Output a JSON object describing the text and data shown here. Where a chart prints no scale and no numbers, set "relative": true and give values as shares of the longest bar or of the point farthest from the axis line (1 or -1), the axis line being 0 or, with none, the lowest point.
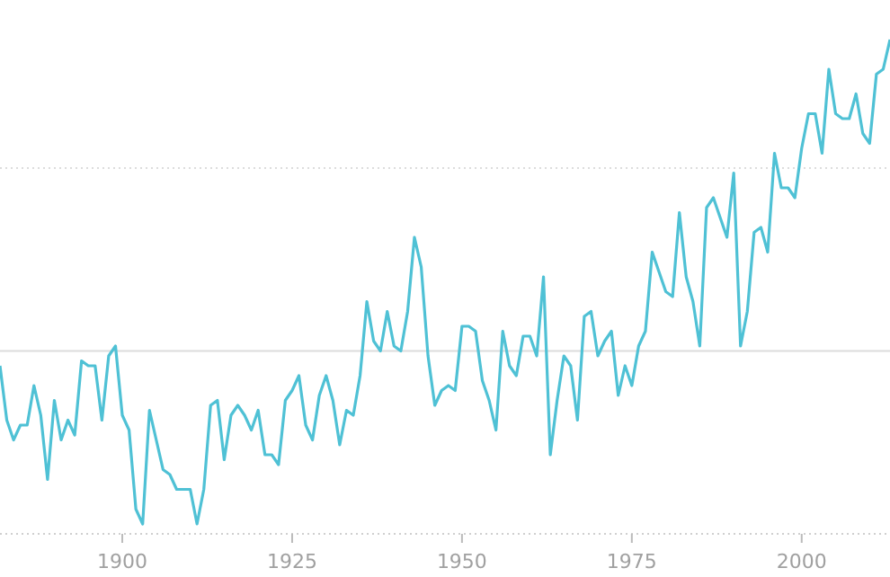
{
  "chart_data": {
    "type": "line",
    "relative": true,
    "x": [
      1882,
      1883,
      1884,
      1885,
      1886,
      1887,
      1888,
      1889,
      1890,
      1891,
      1892,
      1893,
      1894,
      1895,
      1896,
      1897,
      1898,
      1899,
      1900,
      1901,
      1902,
      1903,
      1904,
      1905,
      1906,
      1907,
      1908,
      1909,
      1910,
      1911,
      1912,
      1913,
      1914,
      1915,
      1916,
      1917,
      1918,
      1919,
      1920,
      1921,
      1922,
      1923,
      1924,
      1925,
      1926,
      1927,
      1928,
      1929,
      1930,
      1931,
      1932,
      1933,
      1934,
      1935,
      1936,
      1937,
      1938,
      1939,
      1940,
      1941,
      1942,
      1943,
      1944,
      1945,
      1946,
      1947,
      1948,
      1949,
      1950,
      1951,
      1952,
      1953,
      1954,
      1955,
      1956,
      1957,
      1958,
      1959,
      1960,
      1961,
      1962,
      1963,
      1964,
      1965,
      1966,
      1967,
      1968,
      1969,
      1970,
      1971,
      1972,
      1973,
      1974,
      1975,
      1976,
      1977,
      1978,
      1979,
      1980,
      1981,
      1982,
      1983,
      1984,
      1985,
      1986,
      1987,
      1988,
      1989,
      1990,
      1991,
      1992,
      1993,
      1994,
      1995,
      1996,
      1997,
      1998,
      1999,
      2000,
      2001,
      2002,
      2003,
      2004,
      2005,
      2006,
      2007,
      2008,
      2009,
      2010,
      2011,
      2012,
      2013
    ],
    "xlim": [
      1882,
      2013
    ],
    "xticks": [
      1900,
      1925,
      1950,
      1975,
      2000
    ],
    "tick_labels": "x",
    "ref_lines": [
      {
        "axis": "y",
        "value": 0.37,
        "color": "#dcdcdc",
        "line_style": "solid"
      },
      {
        "axis": "y",
        "value": 0.74,
        "color": "#dcdcdc",
        "line_style": "dotted"
      }
    ],
    "series": [
      {
        "color": "#4fc1d5",
        "values": [
          0.34,
          0.23,
          0.19,
          0.22,
          0.22,
          0.3,
          0.24,
          0.11,
          0.27,
          0.19,
          0.23,
          0.2,
          0.35,
          0.34,
          0.34,
          0.23,
          0.36,
          0.38,
          0.24,
          0.21,
          0.05,
          0.02,
          0.25,
          0.19,
          0.13,
          0.12,
          0.09,
          0.09,
          0.09,
          0.02,
          0.09,
          0.26,
          0.27,
          0.15,
          0.24,
          0.26,
          0.24,
          0.21,
          0.25,
          0.16,
          0.16,
          0.14,
          0.27,
          0.29,
          0.32,
          0.22,
          0.19,
          0.28,
          0.32,
          0.27,
          0.18,
          0.25,
          0.24,
          0.32,
          0.47,
          0.39,
          0.37,
          0.45,
          0.38,
          0.37,
          0.45,
          0.6,
          0.54,
          0.36,
          0.26,
          0.29,
          0.3,
          0.29,
          0.42,
          0.42,
          0.41,
          0.31,
          0.27,
          0.21,
          0.41,
          0.34,
          0.32,
          0.4,
          0.4,
          0.36,
          0.52,
          0.16,
          0.27,
          0.36,
          0.34,
          0.23,
          0.44,
          0.45,
          0.36,
          0.39,
          0.41,
          0.28,
          0.34,
          0.3,
          0.38,
          0.41,
          0.57,
          0.53,
          0.49,
          0.48,
          0.65,
          0.52,
          0.47,
          0.38,
          0.66,
          0.68,
          0.64,
          0.6,
          0.73,
          0.38,
          0.45,
          0.61,
          0.62,
          0.57,
          0.77,
          0.7,
          0.7,
          0.68,
          0.78,
          0.85,
          0.85,
          0.77,
          0.94,
          0.85,
          0.84,
          0.84,
          0.89,
          0.81,
          0.79,
          0.93,
          0.94,
          1
        ]
      }
    ]
  }
}
